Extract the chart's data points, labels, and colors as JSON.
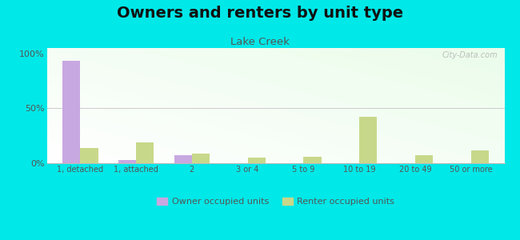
{
  "title": "Owners and renters by unit type",
  "subtitle": "Lake Creek",
  "categories": [
    "1, detached",
    "1, attached",
    "2",
    "3 or 4",
    "5 to 9",
    "10 to 19",
    "20 to 49",
    "50 or more"
  ],
  "owner_values": [
    93,
    3,
    7,
    0,
    0,
    0,
    0,
    0
  ],
  "renter_values": [
    14,
    19,
    9,
    5,
    6,
    42,
    7,
    12
  ],
  "owner_color": "#c8a8e0",
  "renter_color": "#c8d88a",
  "background_color": "#00e8e8",
  "title_fontsize": 14,
  "subtitle_fontsize": 9.5,
  "ylim": [
    0,
    105
  ],
  "yticks": [
    0,
    50,
    100
  ],
  "ytick_labels": [
    "0%",
    "50%",
    "100%"
  ],
  "legend_owner": "Owner occupied units",
  "legend_renter": "Renter occupied units",
  "bar_width": 0.32,
  "watermark": "City-Data.com",
  "grid_color": "#dddddd",
  "tick_color": "#555555",
  "title_color": "#111111",
  "subtitle_color": "#555555"
}
